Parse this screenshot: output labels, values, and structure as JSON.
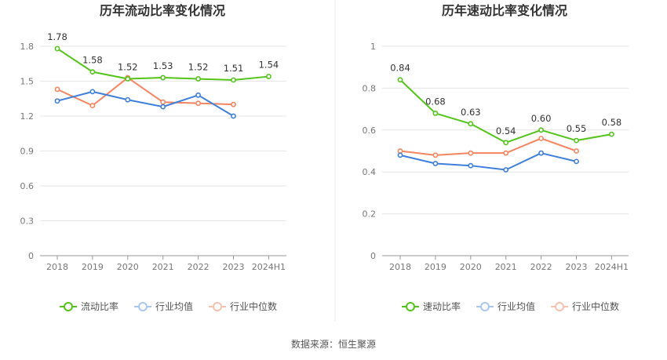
{
  "chart_data": [
    {
      "type": "line",
      "title": "历年流动比率变化情况",
      "categories": [
        "2018",
        "2019",
        "2020",
        "2021",
        "2022",
        "2023",
        "2024H1"
      ],
      "ylim": [
        0,
        1.8
      ],
      "yticks": [
        "0",
        "0.3",
        "0.6",
        "0.9",
        "1.2",
        "1.5",
        "1.8"
      ],
      "grid": true,
      "legend_position": "bottom",
      "series": [
        {
          "name": "流动比率",
          "color": "#52c41a",
          "values": [
            1.78,
            1.58,
            1.52,
            1.53,
            1.52,
            1.51,
            1.54
          ],
          "labels": [
            "1.78",
            "1.58",
            "1.52",
            "1.53",
            "1.52",
            "1.51",
            "1.54"
          ]
        },
        {
          "name": "行业均值",
          "color": "#3f7fdc",
          "values": [
            1.33,
            1.41,
            1.34,
            1.28,
            1.38,
            1.2,
            null
          ]
        },
        {
          "name": "行业中位数",
          "color": "#f4855f",
          "values": [
            1.43,
            1.29,
            1.53,
            1.32,
            1.31,
            1.3,
            null
          ]
        }
      ]
    },
    {
      "type": "line",
      "title": "历年速动比率变化情况",
      "categories": [
        "2018",
        "2019",
        "2020",
        "2021",
        "2022",
        "2023",
        "2024H1"
      ],
      "ylim": [
        0,
        1
      ],
      "yticks": [
        "0",
        "0.2",
        "0.4",
        "0.6",
        "0.8",
        "1"
      ],
      "grid": true,
      "legend_position": "bottom",
      "series": [
        {
          "name": "速动比率",
          "color": "#52c41a",
          "values": [
            0.84,
            0.68,
            0.63,
            0.54,
            0.6,
            0.55,
            0.58
          ],
          "labels": [
            "0.84",
            "0.68",
            "0.63",
            "0.54",
            "0.60",
            "0.55",
            "0.58"
          ]
        },
        {
          "name": "行业均值",
          "color": "#3f7fdc",
          "values": [
            0.48,
            0.44,
            0.43,
            0.41,
            0.49,
            0.45,
            null
          ]
        },
        {
          "name": "行业中位数",
          "color": "#f4855f",
          "values": [
            0.5,
            0.48,
            0.49,
            0.49,
            0.56,
            0.5,
            null
          ]
        }
      ]
    }
  ],
  "footer": {
    "source": "数据来源：恒生聚源"
  }
}
